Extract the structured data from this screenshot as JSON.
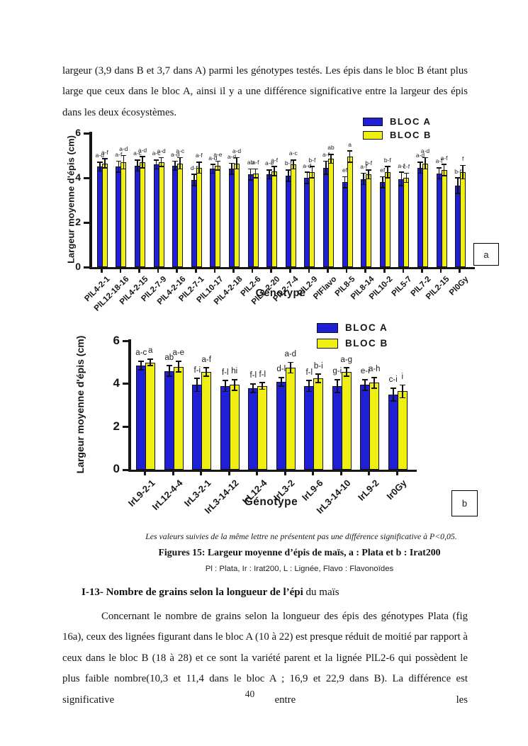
{
  "page": {
    "top_paragraph": "largeur (3,9 dans B et 3,7 dans A) parmi les génotypes testés. Les épis dans le bloc B étant plus large que ceux dans le bloc A, ainsi il y a une différence significative entre la largeur des épis dans les deux écosystèmes.",
    "note_italic": "Les valeurs suivies de la même lettre ne présentent pas une différence significative à P<0,05.",
    "figure_caption": "Figures 15: Largeur moyenne d’épis de maïs, a : Plata et b : Irat200",
    "abbreviations": "Pl : Plata, Ir : Irat200, L : Lignée, Flavo : Flavonoïdes",
    "section_heading_bold": "I-13- Nombre de grains selon la longueur de l’épi",
    "section_heading_rest": " du maïs",
    "body_paragraph": "Concernant le nombre de grains selon la longueur des épis des génotypes Plata (fig 16a), ceux des lignées figurant dans le bloc A (10 à 22) est presque réduit de moitié par rapport à ceux dans le bloc B (18 à 28) et ce sont la variété parent et la lignée PlL2-6 qui possèdent le plus faible nombre(10,3 et 11,4 dans le bloc A ; 16,9 et 22,9 dans B). La différence est significative entre les",
    "page_number": "40"
  },
  "colors": {
    "bloc_a": "#1F1FD6",
    "bloc_b": "#EFEF12",
    "panel_box": "#FFFF00",
    "axis": "#161616"
  },
  "chart_data": [
    {
      "id": "a",
      "type": "bar",
      "panel_label": "a",
      "xlabel": "Génotype",
      "ylabel": "Largeur moyenne d'épis (cm)",
      "ylim": [
        0,
        6
      ],
      "yticks": [
        0,
        2,
        4,
        6
      ],
      "legend": [
        "BLOC A",
        "BLOC B"
      ],
      "legend_position": "top-right",
      "grid": false,
      "categories": [
        "PlL4-2-1",
        "PlL12-18-16",
        "PlL4-2-15",
        "PlL2-7-9",
        "PlL4-2-16",
        "PlL2-7-1",
        "PlL10-17",
        "PlL4-2-18",
        "PlL2-6",
        "PlL2-2-20",
        "PlL2-7-4",
        "PlL2-9",
        "PlFlavo",
        "PlL8-5",
        "PlL8-14",
        "PlL10-2",
        "PlL5-7",
        "PlL7-2",
        "PlL2-15",
        "Pl0Gy"
      ],
      "series": [
        {
          "name": "BLOC A",
          "values": [
            4.5,
            4.5,
            4.55,
            4.6,
            4.55,
            3.9,
            4.4,
            4.4,
            4.15,
            4.15,
            4.1,
            4.0,
            4.45,
            3.8,
            3.95,
            3.8,
            3.95,
            4.45,
            4.2,
            3.65
          ],
          "errors": [
            0.2,
            0.25,
            0.25,
            0.2,
            0.2,
            0.25,
            0.2,
            0.25,
            0.25,
            0.2,
            0.25,
            0.25,
            0.3,
            0.25,
            0.25,
            0.25,
            0.3,
            0.25,
            0.25,
            0.35
          ],
          "letters": [
            "a-d",
            "a-f",
            "a-c",
            "a-c",
            "a-d",
            "d-f",
            "a-d",
            "a-d",
            "ab",
            "a-e",
            "b-f",
            "a-d",
            "a-f",
            "ef",
            "a-f",
            "ef",
            "a-f",
            "a-d",
            "a-f",
            "b-f"
          ]
        },
        {
          "name": "BLOC B",
          "values": [
            4.65,
            4.7,
            4.7,
            4.7,
            4.65,
            4.45,
            4.55,
            4.65,
            4.2,
            4.3,
            4.6,
            4.25,
            4.85,
            4.95,
            4.15,
            4.25,
            4.0,
            4.65,
            4.35,
            4.25
          ],
          "errors": [
            0.2,
            0.3,
            0.25,
            0.2,
            0.25,
            0.25,
            0.2,
            0.25,
            0.2,
            0.2,
            0.2,
            0.25,
            0.2,
            0.25,
            0.2,
            0.25,
            0.2,
            0.25,
            0.25,
            0.3
          ],
          "letters": [
            "a-f",
            "a-d",
            "a-d",
            "a-d",
            "a-c",
            "a-f",
            "a-e",
            "a-d",
            "a-f",
            "a-f",
            "a-c",
            "b-f",
            "ab",
            "a",
            "b-f",
            "b-f",
            "c-f",
            "a-d",
            "a-f",
            "f"
          ]
        }
      ]
    },
    {
      "id": "b",
      "type": "bar",
      "panel_label": "b",
      "xlabel": "Génotype",
      "ylabel": "Largeur moyenne d'épis (cm)",
      "ylim": [
        0,
        6
      ],
      "yticks": [
        0,
        2,
        4,
        6
      ],
      "legend": [
        "BLOC A",
        "BLOC B"
      ],
      "legend_position": "top-right",
      "grid": false,
      "categories": [
        "IrL9-2-1",
        "IrL12-4-4",
        "IrL3-2-1",
        "IrL3-14-12",
        "IrL12-4",
        "IrL3-2",
        "IrL9-6",
        "IrL3-14-10",
        "IrL9-2",
        "Ir0Gy"
      ],
      "series": [
        {
          "name": "BLOC A",
          "values": [
            4.85,
            4.6,
            3.95,
            3.9,
            3.8,
            4.1,
            3.9,
            3.9,
            3.95,
            3.5
          ],
          "errors": [
            0.2,
            0.25,
            0.3,
            0.25,
            0.2,
            0.2,
            0.25,
            0.3,
            0.25,
            0.3
          ],
          "letters": [
            "a-c",
            "ab",
            "f-i",
            "f-l",
            "f-l",
            "d-l",
            "f-l",
            "g-i",
            "e-i",
            "c-i"
          ]
        },
        {
          "name": "BLOC B",
          "values": [
            5.0,
            4.8,
            4.55,
            3.95,
            3.9,
            4.75,
            4.25,
            4.55,
            4.05,
            3.65
          ],
          "errors": [
            0.15,
            0.25,
            0.2,
            0.25,
            0.15,
            0.25,
            0.2,
            0.2,
            0.25,
            0.3
          ],
          "letters": [
            "a",
            "a-e",
            "a-f",
            "hi",
            "f-l",
            "a-d",
            "b-i",
            "a-g",
            "a-h",
            "i"
          ]
        }
      ]
    }
  ]
}
